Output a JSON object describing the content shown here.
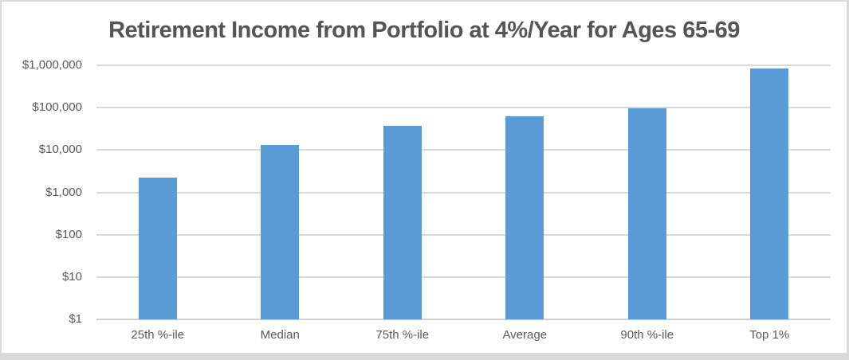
{
  "chart_data": {
    "type": "bar",
    "title": "Retirement Income from Portfolio at 4%/Year for Ages 65-69",
    "categories": [
      "25th %-ile",
      "Median",
      "75th %-ile",
      "Average",
      "90th %-ile",
      "Top 1%"
    ],
    "values": [
      2200,
      13000,
      38000,
      63000,
      95000,
      830000
    ],
    "xlabel": "",
    "ylabel": "",
    "y_axis": {
      "scale": "log",
      "min": 1,
      "max": 1000000,
      "tick_labels_bottom_to_top": [
        "$1",
        "$10",
        "$100",
        "$1,000",
        "$10,000",
        "$100,000",
        "$1,000,000"
      ]
    },
    "grid": true,
    "legend": false,
    "colors": {
      "bar": "#5B9BD5",
      "gridline": "#D9D9D9",
      "axis_line": "#CFCFCF",
      "tick_label": "#595959",
      "title": "#555555"
    }
  }
}
